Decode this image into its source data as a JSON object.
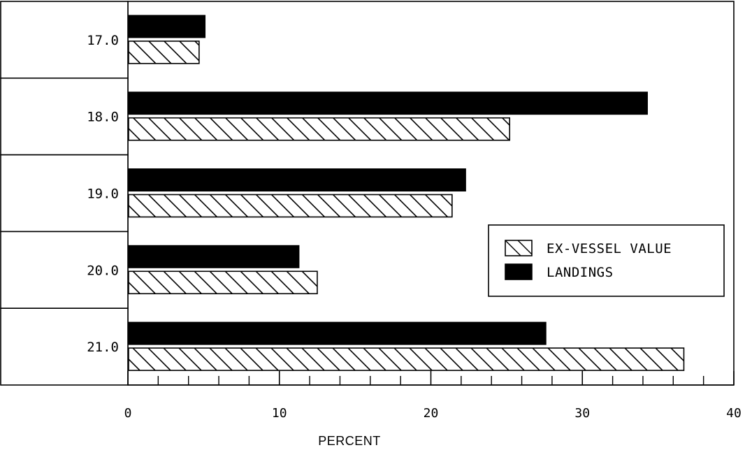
{
  "chart_data": {
    "type": "bar",
    "orientation": "horizontal",
    "categories": [
      "17.0",
      "18.0",
      "19.0",
      "20.0",
      "21.0"
    ],
    "series": [
      {
        "name": "LANDINGS",
        "values": [
          5.1,
          34.3,
          22.3,
          11.3,
          27.6
        ],
        "fill": "solid",
        "color": "#000000"
      },
      {
        "name": "EX-VESSEL VALUE",
        "values": [
          4.7,
          25.2,
          21.4,
          12.5,
          36.7
        ],
        "fill": "hatched",
        "color": "#000000"
      }
    ],
    "xlabel": "PERCENT",
    "ylabel": "",
    "title": "",
    "xlim": [
      0,
      40
    ],
    "xticks": [
      0,
      10,
      20,
      30,
      40
    ],
    "x_minor_step": 2,
    "legend_position": "right",
    "legend_order": [
      "EX-VESSEL VALUE",
      "LANDINGS"
    ],
    "grid": false
  }
}
